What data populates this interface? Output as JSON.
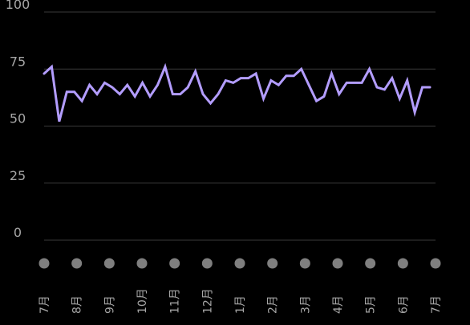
{
  "colors": {
    "background": "#000000",
    "line": "#b39dff",
    "grid": "#3a3a3a",
    "text": "#a6a6a6",
    "marker": "#7f7f7f"
  },
  "chart_data": {
    "type": "line",
    "title": "",
    "xlabel": "",
    "ylabel": "",
    "ylim": [
      0,
      100
    ],
    "yticks": [
      0,
      25,
      50,
      75,
      100
    ],
    "grid": true,
    "x_tick_labels": [
      "7月",
      "8月",
      "9月",
      "10月",
      "11月",
      "12月",
      "1月",
      "2月",
      "3月",
      "4月",
      "5月",
      "6月",
      "7月"
    ],
    "series": [
      {
        "values": [
          73,
          76,
          52,
          65,
          65,
          61,
          68,
          64,
          69,
          67,
          64,
          68,
          63,
          69,
          63,
          68,
          76,
          64,
          64,
          67,
          74,
          64,
          60,
          64,
          70,
          69,
          71,
          71,
          73,
          62,
          70,
          68,
          72,
          72,
          75,
          68,
          61,
          63,
          73,
          64,
          69,
          69,
          69,
          75,
          67,
          66,
          71,
          62,
          70,
          56,
          67,
          67
        ]
      }
    ]
  }
}
